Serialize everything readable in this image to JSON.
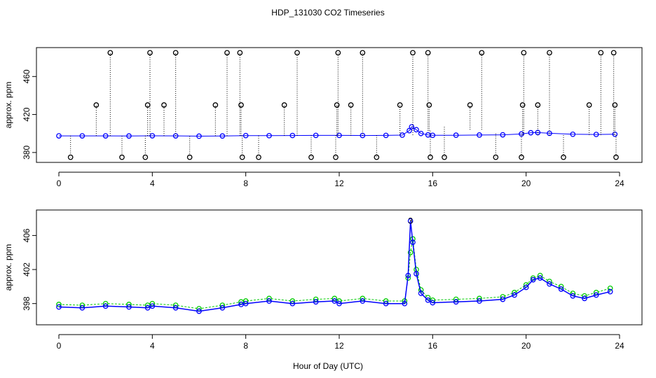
{
  "title": "HDP_131030  CO2 Timeseries",
  "xlabel": "Hour of Day (UTC)",
  "chart_data": [
    {
      "type": "scatter",
      "ylabel": "approx. ppm",
      "xlim": [
        0,
        24
      ],
      "ylim": [
        374,
        486
      ],
      "xticks": [
        0,
        4,
        8,
        12,
        16,
        20,
        24
      ],
      "yticks": [
        380,
        420,
        460
      ],
      "grid": false,
      "series": [
        {
          "color": "#0000ff",
          "x": [
            0,
            1,
            2,
            3,
            4,
            5,
            6,
            7,
            8,
            9,
            10,
            11,
            12,
            13,
            14,
            14.7,
            15.0,
            15.1,
            15.3,
            15.5,
            15.8,
            16,
            17,
            18,
            19,
            19.8,
            20.2,
            20.5,
            21,
            22,
            23,
            23.8
          ],
          "values": [
            397.5,
            397.5,
            397.5,
            397.4,
            397.6,
            397.5,
            397.2,
            397.4,
            397.8,
            397.7,
            397.9,
            398.0,
            398.0,
            397.9,
            398.0,
            398.3,
            403,
            407,
            404,
            400,
            398.5,
            398.1,
            398.2,
            398.4,
            398.6,
            399.5,
            400.8,
            401.0,
            400.2,
            399.2,
            399.0,
            399.2
          ]
        },
        {
          "color": "#000000",
          "x": [
            0.5,
            1.6,
            2.2,
            2.7,
            3.7,
            3.8,
            3.9,
            4.5,
            5.0,
            5.6,
            6.7,
            7.2,
            7.75,
            7.8,
            7.85,
            8.55,
            9.65,
            10.2,
            10.8,
            11.85,
            11.9,
            11.95,
            12.5,
            13.0,
            13.6,
            14.6,
            15.15,
            15.8,
            15.85,
            15.9,
            16.5,
            17.6,
            18.1,
            18.7,
            19.8,
            19.85,
            19.9,
            20.5,
            21.0,
            21.6,
            22.7,
            23.2,
            23.75,
            23.8,
            23.85
          ],
          "values": [
            375,
            430,
            485,
            375,
            375,
            430,
            485,
            430,
            485,
            375,
            430,
            485,
            485,
            430,
            375,
            375,
            430,
            485,
            375,
            375,
            430,
            485,
            430,
            485,
            375,
            430,
            485,
            485,
            430,
            375,
            375,
            430,
            485,
            375,
            375,
            430,
            485,
            430,
            485,
            375,
            430,
            485,
            485,
            430,
            375
          ]
        }
      ]
    },
    {
      "type": "scatter",
      "ylabel": "approx. ppm",
      "xlim": [
        0,
        24
      ],
      "ylim": [
        396.0,
        408.5
      ],
      "xticks": [
        0,
        4,
        8,
        12,
        16,
        20,
        24
      ],
      "yticks": [
        398,
        402,
        406
      ],
      "grid": false,
      "point_label": "3",
      "series": [
        {
          "color": "#00cc00",
          "x": [
            0,
            1,
            2,
            3,
            3.8,
            4,
            5,
            6,
            7,
            7.8,
            8,
            9,
            10,
            11,
            11.8,
            12,
            13,
            14,
            14.8,
            14.95,
            15.05,
            15.15,
            15.3,
            15.5,
            15.8,
            16,
            17,
            18,
            19,
            19.5,
            20,
            20.3,
            20.6,
            21,
            21.5,
            22,
            22.5,
            23,
            23.6
          ],
          "values": [
            397.9,
            397.8,
            398.0,
            397.9,
            397.8,
            398.0,
            397.8,
            397.4,
            397.8,
            398.2,
            398.3,
            398.6,
            398.3,
            398.5,
            398.6,
            398.3,
            398.6,
            398.3,
            398.3,
            401,
            404,
            405.6,
            402,
            399.6,
            398.7,
            398.4,
            398.5,
            398.6,
            398.8,
            399.3,
            400.2,
            401.0,
            401.3,
            400.6,
            400.0,
            399.2,
            398.9,
            399.3,
            399.8
          ]
        },
        {
          "color": "#0000ff",
          "x": [
            0,
            1,
            2,
            3,
            3.8,
            4,
            5,
            6,
            7,
            7.8,
            8,
            9,
            10,
            11,
            11.8,
            12,
            13,
            14,
            14.8,
            14.95,
            15.05,
            15.15,
            15.3,
            15.5,
            15.8,
            16,
            17,
            18,
            19,
            19.5,
            20,
            20.3,
            20.6,
            21,
            21.5,
            22,
            22.5,
            23,
            23.6
          ],
          "values": [
            397.6,
            397.5,
            397.7,
            397.6,
            397.5,
            397.7,
            397.5,
            397.1,
            397.5,
            397.9,
            398.0,
            398.3,
            398.0,
            398.2,
            398.3,
            398.0,
            398.3,
            398.0,
            398.0,
            401.3,
            407.7,
            405.2,
            401.5,
            399.2,
            398.4,
            398.1,
            398.2,
            398.3,
            398.5,
            399.0,
            399.9,
            400.8,
            401.0,
            400.3,
            399.7,
            398.9,
            398.6,
            399.0,
            399.4
          ]
        }
      ]
    }
  ]
}
